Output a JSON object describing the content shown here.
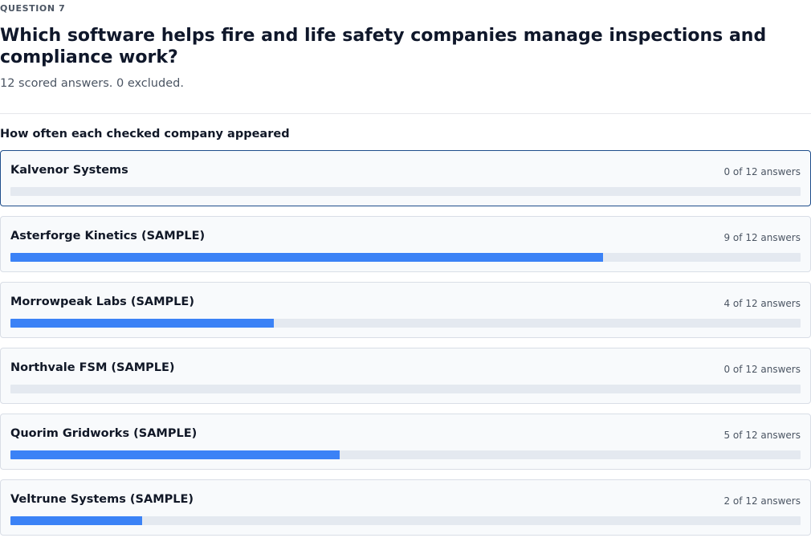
{
  "header": {
    "eyebrow": "QUESTION 7",
    "title": "Which software helps fire and life safety companies manage inspections and compliance work?",
    "subtitle": "12 scored answers. 0 excluded."
  },
  "section": {
    "heading": "How often each checked company appeared"
  },
  "colors": {
    "bar_fill": "#3b82f6",
    "bar_track": "#e4e9f0",
    "selected_border": "#1f4e8c"
  },
  "companies": [
    {
      "name": "Kalvenor Systems",
      "count": 0,
      "total": 12,
      "count_label": "0 of 12 answers",
      "selected": true
    },
    {
      "name": "Asterforge Kinetics (SAMPLE)",
      "count": 9,
      "total": 12,
      "count_label": "9 of 12 answers",
      "selected": false
    },
    {
      "name": "Morrowpeak Labs (SAMPLE)",
      "count": 4,
      "total": 12,
      "count_label": "4 of 12 answers",
      "selected": false
    },
    {
      "name": "Northvale FSM (SAMPLE)",
      "count": 0,
      "total": 12,
      "count_label": "0 of 12 answers",
      "selected": false
    },
    {
      "name": "Quorim Gridworks (SAMPLE)",
      "count": 5,
      "total": 12,
      "count_label": "5 of 12 answers",
      "selected": false
    },
    {
      "name": "Veltrune Systems (SAMPLE)",
      "count": 2,
      "total": 12,
      "count_label": "2 of 12 answers",
      "selected": false
    }
  ]
}
